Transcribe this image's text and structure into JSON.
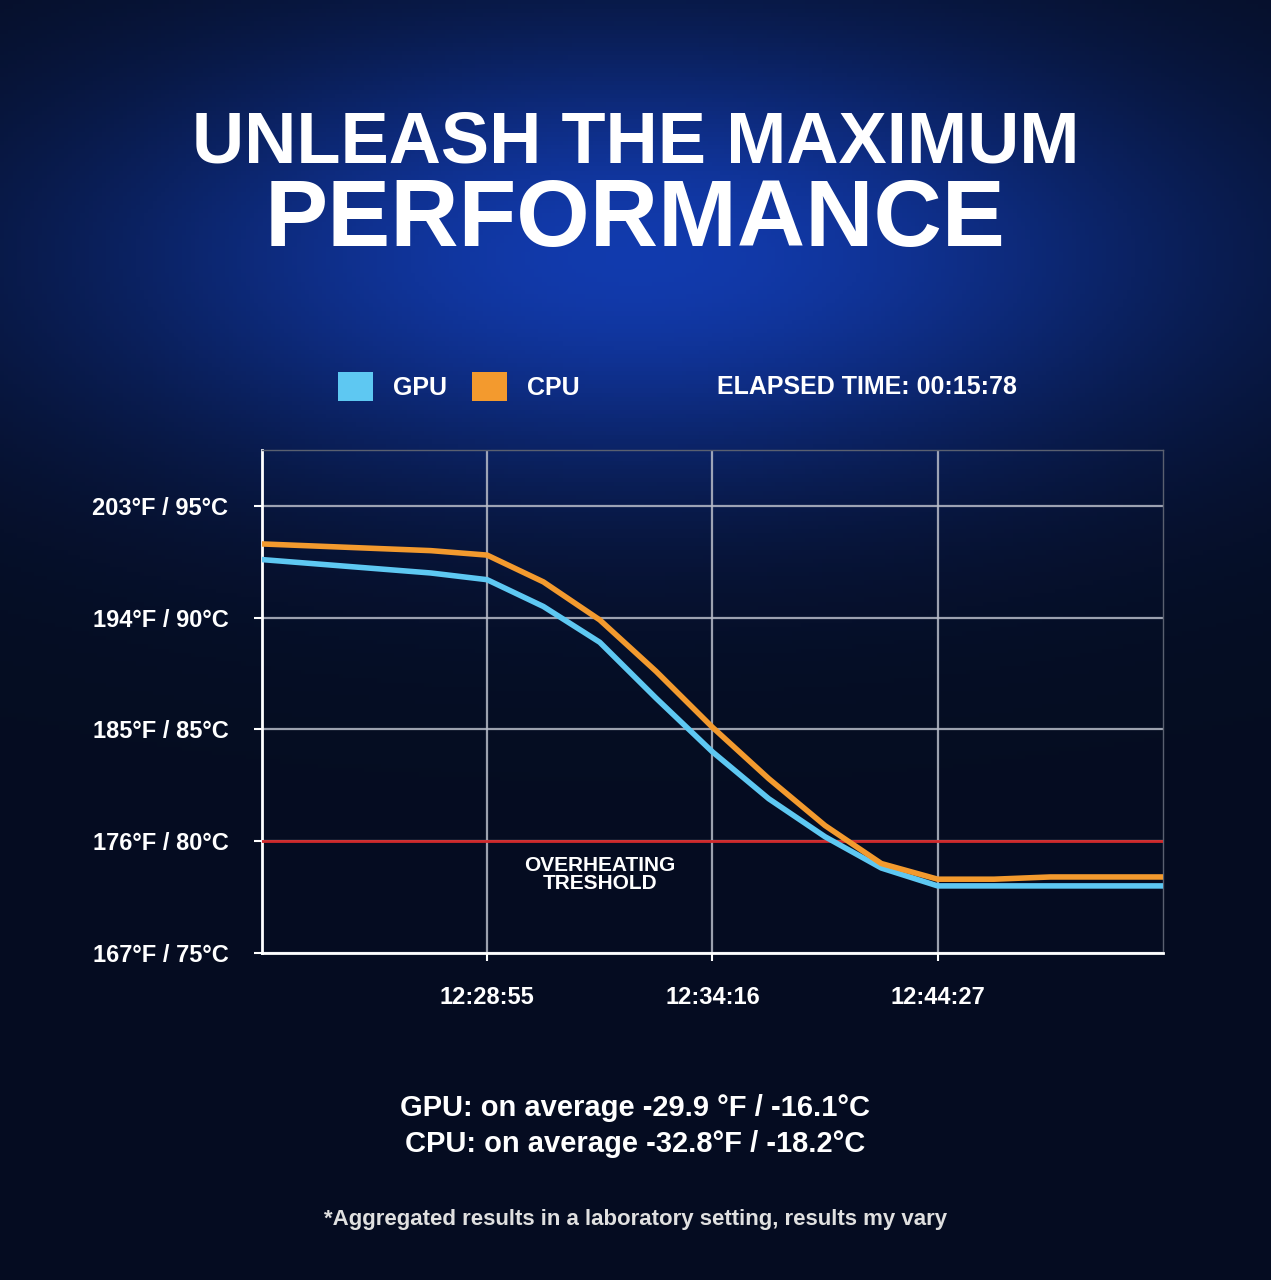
{
  "chart_data": {
    "type": "line",
    "title": "UNLEASH THE MAXIMUM\nPERFORMANCE",
    "x": [
      0,
      0.25,
      0.5,
      0.75,
      1,
      1.25,
      1.5,
      1.75,
      2,
      2.25,
      2.5,
      2.75,
      3,
      3.25,
      3.5,
      3.75,
      4
    ],
    "series": [
      {
        "name": "GPU",
        "color": "#5ec8f2",
        "values": [
          92.6,
          92.4,
          92.2,
          92.0,
          91.7,
          90.5,
          88.9,
          86.4,
          84.0,
          81.9,
          80.2,
          78.8,
          78.0,
          78.0,
          78.0,
          78.0,
          78.0
        ]
      },
      {
        "name": "CPU",
        "color": "#f39a2e",
        "values": [
          93.3,
          93.2,
          93.1,
          93.0,
          92.8,
          91.6,
          89.9,
          87.6,
          85.1,
          82.8,
          80.7,
          79.0,
          78.3,
          78.3,
          78.4,
          78.4,
          78.4
        ]
      }
    ],
    "xlim": [
      0,
      4
    ],
    "xticks": [
      {
        "value": 1,
        "label": "12:28:55"
      },
      {
        "value": 2,
        "label": "12:34:16"
      },
      {
        "value": 3,
        "label": "12:44:27"
      }
    ],
    "ylim": [
      75,
      97.5
    ],
    "yticks": [
      {
        "value": 75,
        "label": "167°F / 75°C"
      },
      {
        "value": 80,
        "label": "176°F / 80°C"
      },
      {
        "value": 85,
        "label": "185°F / 85°C"
      },
      {
        "value": 90,
        "label": "194°F / 90°C"
      },
      {
        "value": 95,
        "label": "203°F / 95°C"
      }
    ],
    "grid": true,
    "legend": "upper left",
    "annotations": [
      {
        "text": "ELAPSED TIME: 00:15:78"
      }
    ],
    "threshold": {
      "value": 80,
      "label": "OVERHEATING\nTRESHOLD",
      "color": "#d0282a"
    },
    "notes": [
      "GPU: on average -29.9 °F / -16.1°C",
      "CPU: on average -32.8°F / -18.2°C"
    ],
    "footnote": "*Aggregated results in a laboratory setting, results my vary"
  }
}
